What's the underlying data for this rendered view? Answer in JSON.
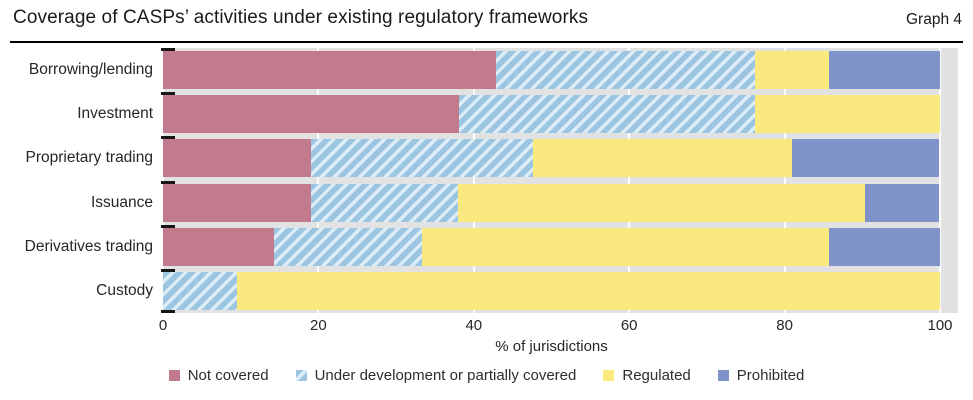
{
  "header": {
    "title": "Coverage of CASPs’ activities under existing regulatory frameworks",
    "graph_label": "Graph 4"
  },
  "colors": {
    "plot_background": "#e2e2e2",
    "gridline": "#fcfcfc",
    "not_covered": "#c17b8c",
    "under_development_base": "#9cc5e1",
    "under_development_stripe": "#dcedf7",
    "regulated": "#fae97e",
    "prohibited": "#8093c8"
  },
  "chart_data": {
    "type": "bar",
    "orientation": "horizontal",
    "stacked": true,
    "title": "Coverage of CASPs’ activities under existing regulatory frameworks",
    "categories": [
      "Borrowing/lending",
      "Investment",
      "Proprietary trading",
      "Issuance",
      "Derivatives trading",
      "Custody"
    ],
    "series": [
      {
        "name": "Not covered",
        "color": "#c17b8c",
        "values": [
          42.9,
          38.1,
          19.0,
          19.0,
          14.3,
          0
        ]
      },
      {
        "name": "Under development or partially covered",
        "color": "#9cc5e1",
        "stripe_color": "#dcedf7",
        "pattern": "diagonal-stripes",
        "values": [
          33.3,
          38.1,
          28.6,
          19.0,
          19.0,
          9.5
        ]
      },
      {
        "name": "Regulated",
        "color": "#fae97e",
        "values": [
          9.5,
          23.8,
          33.3,
          52.4,
          52.4,
          90.5
        ]
      },
      {
        "name": "Prohibited",
        "color": "#8093c8",
        "values": [
          14.3,
          0,
          19.0,
          9.5,
          14.3,
          0
        ]
      }
    ],
    "xlabel": "% of jurisdictions",
    "xlim": [
      0,
      100
    ],
    "xticks": [
      0,
      20,
      40,
      60,
      80,
      100
    ],
    "grid": true,
    "legend_position": "bottom"
  }
}
